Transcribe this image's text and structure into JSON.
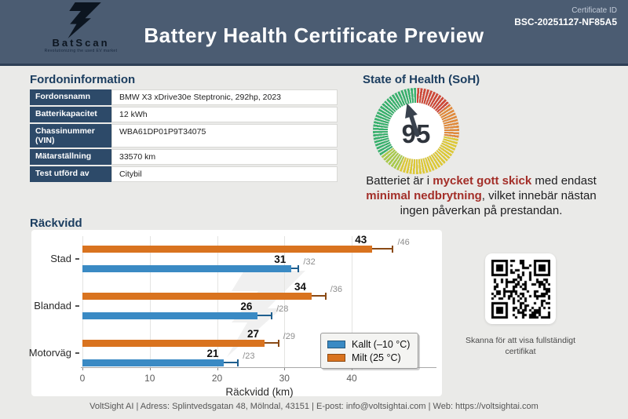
{
  "header": {
    "logo_text": "BatScan",
    "logo_tagline": "Revolutionizing the used EV market",
    "title": "Battery Health Certificate Preview",
    "certificate_id_label": "Certificate ID",
    "certificate_id": "BSC-20251127-NF85A5"
  },
  "vehicle_info": {
    "heading": "Fordoninformation",
    "rows": [
      {
        "label": "Fordonsnamn",
        "value": "BMW X3 xDrive30e Steptronic, 292hp, 2023"
      },
      {
        "label": "Batterikapacitet",
        "value": "12 kWh"
      },
      {
        "label": "Chassinummer (VIN)",
        "value": "WBA61DP01P9T34075"
      },
      {
        "label": "Mätarställning",
        "value": "33570 km"
      },
      {
        "label": "Test utförd av",
        "value": "Citybil"
      }
    ]
  },
  "soh": {
    "heading": "State of Health (SoH)",
    "value": 95,
    "gauge_segments": [
      {
        "color": "#cd4838",
        "from": 0,
        "to": 52
      },
      {
        "color": "#e08a3c",
        "from": 52,
        "to": 100
      },
      {
        "color": "#dcc838",
        "from": 100,
        "to": 205
      },
      {
        "color": "#a8c94c",
        "from": 205,
        "to": 235
      },
      {
        "color": "#39b06d",
        "from": 235,
        "to": 360
      }
    ],
    "description_segments": [
      {
        "text": "Batteriet är i ",
        "em": false
      },
      {
        "text": "mycket gott skick",
        "em": true
      },
      {
        "text": " med endast ",
        "em": false
      },
      {
        "text": "minimal nedbrytning",
        "em": true
      },
      {
        "text": ", vilket innebär nästan ingen påverkan på prestandan.",
        "em": false
      }
    ]
  },
  "chart_data": {
    "type": "bar",
    "orientation": "horizontal",
    "title": "Räckvidd",
    "categories": [
      "Stad",
      "Blandad",
      "Motorväg"
    ],
    "series": [
      {
        "name": "Kallt (–10 °C)",
        "color": "#3a8ac4",
        "error_color": "#1f5f8f",
        "row": 1,
        "values": [
          31,
          26,
          21
        ],
        "upper": [
          32,
          28,
          23
        ]
      },
      {
        "name": "Milt (25 °C)",
        "color": "#d9731f",
        "error_color": "#8a4a15",
        "row": 0,
        "values": [
          43,
          34,
          27
        ],
        "upper": [
          46,
          36,
          29
        ]
      }
    ],
    "value_label_prefix": "/",
    "xlabel": "Räckvidd (km)",
    "xticks": [
      0,
      10,
      20,
      30,
      40
    ],
    "xlim": [
      0,
      49
    ],
    "grid": true,
    "legend_position": "lower right"
  },
  "qr": {
    "caption": "Skanna för att visa fullständigt certifikat"
  },
  "footer": {
    "text": "VoltSight AI | Adress: Splintvedsgatan 48, Mölndal, 43151 | E-post: info@voltsightai.com | Web: https://voltsightai.com"
  }
}
